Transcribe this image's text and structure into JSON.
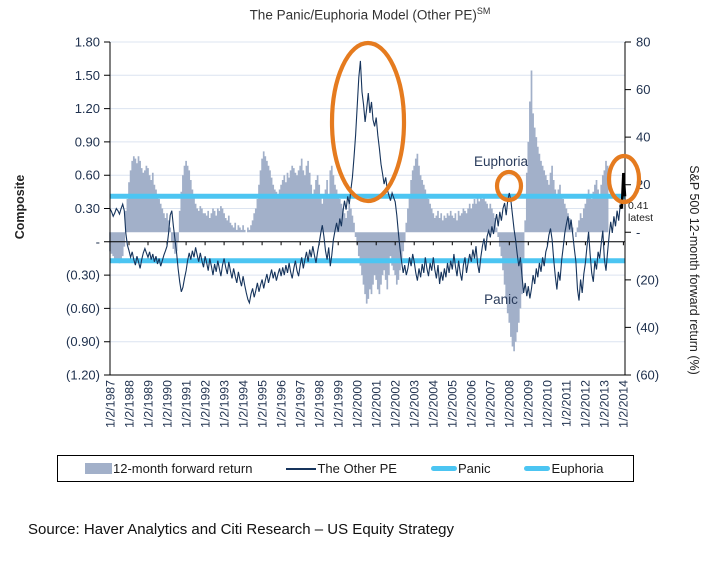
{
  "source": "Source: Haver Analytics and Citi Research – US Equity Strategy",
  "colors": {
    "bar": "#a2b0c9",
    "line": "#16345c",
    "threshold": "#4cc5f2",
    "highlight": "#e57b1f",
    "grid": "#dce4f0",
    "axis_text": "#20324f",
    "latest_text": "#222222",
    "annotation_text": "#2a3c5c",
    "latest_stroke": "#000000"
  },
  "legend": [
    {
      "label": "12-month forward return",
      "swatch": "bar"
    },
    {
      "label": "The Other PE",
      "swatch": "line"
    },
    {
      "label": "Panic",
      "swatch": "threshold"
    },
    {
      "label": "Euphoria",
      "swatch": "threshold"
    }
  ],
  "chart_data": {
    "type": "combo",
    "title": "The Panic/Euphoria Model (Other PE)",
    "title_superscript": "SM",
    "frequency": "monthly",
    "x_start": "1987-01",
    "left_axis": {
      "title": "Composite",
      "max": 1.8,
      "min": -1.2,
      "step": 0.3,
      "tick_labels": [
        "1.80",
        "1.50",
        "1.20",
        "0.90",
        "0.60",
        "0.30",
        "-",
        "(0.30)",
        "(0.60)",
        "(0.90)",
        "(1.20)"
      ],
      "tick_values": [
        1.8,
        1.5,
        1.2,
        0.9,
        0.6,
        0.3,
        0,
        -0.3,
        -0.6,
        -0.9,
        -1.2
      ]
    },
    "right_axis": {
      "title": "S&P 500 12-month forward return (%)",
      "max": 80,
      "min": -60,
      "step": 20,
      "tick_labels": [
        "80",
        "60",
        "40",
        "20",
        "-",
        "(20)",
        "(40)",
        "(60)"
      ],
      "tick_values": [
        80,
        60,
        40,
        20,
        0,
        -20,
        -40,
        -60
      ]
    },
    "x_axis": {
      "ticks_every_months": 12,
      "tick_labels": [
        "1/2/1987",
        "1/2/1988",
        "1/2/1989",
        "1/2/1990",
        "1/2/1991",
        "1/2/1992",
        "1/2/1993",
        "1/2/1994",
        "1/2/1995",
        "1/2/1996",
        "1/2/1997",
        "1/2/1998",
        "1/2/1999",
        "1/2/2000",
        "1/2/2001",
        "1/2/2002",
        "1/2/2003",
        "1/2/2004",
        "1/2/2005",
        "1/2/2006",
        "1/2/2007",
        "1/2/2008",
        "1/2/2009",
        "1/2/2010",
        "1/2/2011",
        "1/2/2012",
        "1/2/2013",
        "1/2/2014"
      ]
    },
    "thresholds": {
      "panic": -0.17,
      "euphoria": 0.41
    },
    "annotations": {
      "euphoria": "Euphoria",
      "panic": "Panic",
      "latest_value": "0.41",
      "latest_caption": "latest"
    },
    "latest_highlight_points": 4,
    "series": [
      {
        "name": "12-month forward return",
        "type": "bar",
        "axis": "right",
        "values": [
          -8,
          -9,
          -10,
          -11,
          -12,
          -11,
          -13,
          -12,
          -10,
          -6,
          9,
          14,
          21,
          26,
          30,
          32,
          31,
          29,
          32,
          30,
          27,
          25,
          26,
          28,
          27,
          24,
          22,
          25,
          20,
          18,
          16,
          14,
          12,
          10,
          8,
          6,
          8,
          5,
          2,
          -4,
          -7,
          -9,
          -8,
          -4,
          9,
          17,
          24,
          28,
          30,
          28,
          26,
          22,
          18,
          15,
          12,
          10,
          9,
          11,
          10,
          8,
          8,
          7,
          9,
          6,
          8,
          10,
          9,
          7,
          10,
          9,
          11,
          10,
          8,
          6,
          5,
          7,
          4,
          3,
          2,
          4,
          1,
          3,
          2,
          1,
          3,
          1,
          0,
          2,
          1,
          3,
          5,
          8,
          10,
          14,
          20,
          26,
          31,
          34,
          32,
          30,
          28,
          26,
          23,
          20,
          18,
          17,
          16,
          18,
          20,
          22,
          24,
          21,
          25,
          23,
          26,
          28,
          27,
          25,
          24,
          26,
          28,
          31,
          26,
          24,
          28,
          30,
          25,
          20,
          15,
          18,
          22,
          24,
          20,
          16,
          12,
          15,
          18,
          22,
          16,
          26,
          28,
          24,
          20,
          18,
          16,
          14,
          12,
          10,
          8,
          6,
          9,
          12,
          10,
          7,
          4,
          -2,
          -5,
          -10,
          -14,
          -18,
          -22,
          -26,
          -30,
          -28,
          -24,
          -26,
          -22,
          -18,
          -20,
          -24,
          -26,
          -22,
          -18,
          -16,
          -20,
          -24,
          -18,
          -10,
          -14,
          -16,
          -18,
          -22,
          -20,
          -16,
          -12,
          -8,
          -4,
          4,
          10,
          16,
          22,
          26,
          28,
          31,
          33,
          28,
          24,
          22,
          20,
          18,
          16,
          14,
          12,
          10,
          8,
          6,
          7,
          9,
          6,
          8,
          5,
          7,
          6,
          8,
          7,
          9,
          7,
          6,
          8,
          5,
          9,
          7,
          8,
          10,
          9,
          8,
          10,
          12,
          10,
          12,
          14,
          12,
          15,
          13,
          16,
          14,
          15,
          13,
          12,
          10,
          12,
          10,
          8,
          6,
          2,
          -2,
          -6,
          -10,
          -16,
          -22,
          -28,
          -34,
          -38,
          -44,
          -48,
          -50,
          -46,
          -42,
          -38,
          -32,
          -26,
          -12,
          5,
          25,
          38,
          55,
          68,
          50,
          44,
          40,
          36,
          33,
          30,
          28,
          26,
          24,
          22,
          20,
          25,
          28,
          22,
          18,
          15,
          18,
          20,
          16,
          14,
          12,
          10,
          8,
          6,
          4,
          2,
          0,
          -2,
          2,
          5,
          8,
          6,
          10,
          12,
          15,
          18,
          16,
          14,
          17,
          20,
          22,
          18,
          16,
          20,
          24,
          26,
          30,
          28
        ]
      },
      {
        "name": "The Other PE",
        "type": "line",
        "axis": "left",
        "values": [
          0.3,
          0.27,
          0.23,
          0.26,
          0.3,
          0.28,
          0.25,
          0.3,
          0.34,
          0.28,
          0.08,
          -0.03,
          -0.08,
          -0.14,
          -0.09,
          -0.16,
          -0.21,
          -0.13,
          -0.18,
          -0.24,
          -0.16,
          -0.1,
          -0.06,
          -0.1,
          -0.14,
          -0.09,
          -0.16,
          -0.11,
          -0.18,
          -0.13,
          -0.2,
          -0.15,
          -0.22,
          -0.17,
          -0.12,
          -0.08,
          -0.04,
          0.08,
          0.24,
          0.28,
          0.14,
          0.02,
          -0.1,
          -0.24,
          -0.36,
          -0.45,
          -0.41,
          -0.33,
          -0.26,
          -0.17,
          -0.1,
          -0.16,
          -0.08,
          -0.14,
          -0.05,
          -0.12,
          -0.18,
          -0.1,
          -0.17,
          -0.23,
          -0.13,
          -0.19,
          -0.26,
          -0.15,
          -0.22,
          -0.3,
          -0.2,
          -0.27,
          -0.17,
          -0.24,
          -0.31,
          -0.21,
          -0.15,
          -0.23,
          -0.29,
          -0.18,
          -0.26,
          -0.33,
          -0.24,
          -0.31,
          -0.37,
          -0.27,
          -0.34,
          -0.4,
          -0.31,
          -0.39,
          -0.46,
          -0.52,
          -0.55,
          -0.47,
          -0.42,
          -0.5,
          -0.44,
          -0.37,
          -0.45,
          -0.39,
          -0.34,
          -0.42,
          -0.35,
          -0.29,
          -0.37,
          -0.31,
          -0.25,
          -0.33,
          -0.27,
          -0.35,
          -0.29,
          -0.24,
          -0.31,
          -0.23,
          -0.3,
          -0.21,
          -0.28,
          -0.19,
          -0.27,
          -0.33,
          -0.24,
          -0.17,
          -0.26,
          -0.31,
          -0.21,
          -0.14,
          -0.24,
          -0.16,
          -0.09,
          -0.18,
          -0.07,
          -0.14,
          -0.04,
          -0.12,
          -0.19,
          -0.09,
          -0.01,
          0.08,
          0.15,
          0.05,
          -0.08,
          -0.16,
          -0.05,
          -0.22,
          -0.12,
          0.02,
          0.1,
          0.17,
          0.09,
          0.21,
          0.14,
          0.27,
          0.37,
          0.29,
          0.41,
          0.34,
          0.47,
          0.58,
          0.76,
          0.96,
          1.22,
          1.48,
          1.63,
          1.35,
          1.24,
          1.08,
          1.2,
          1.34,
          1.16,
          1.26,
          1.1,
          1.04,
          1.12,
          0.96,
          0.84,
          0.7,
          0.61,
          0.52,
          0.58,
          0.47,
          0.42,
          0.37,
          0.44,
          0.4,
          0.36,
          0.24,
          0.08,
          -0.06,
          -0.18,
          -0.28,
          -0.21,
          -0.3,
          -0.24,
          -0.14,
          -0.22,
          -0.11,
          -0.18,
          -0.28,
          -0.35,
          -0.24,
          -0.32,
          -0.2,
          -0.28,
          -0.14,
          -0.24,
          -0.31,
          -0.19,
          -0.26,
          -0.14,
          -0.25,
          -0.33,
          -0.21,
          -0.38,
          -0.27,
          -0.35,
          -0.24,
          -0.32,
          -0.19,
          -0.28,
          -0.17,
          -0.25,
          -0.11,
          -0.22,
          -0.31,
          -0.17,
          -0.28,
          -0.35,
          -0.21,
          -0.14,
          -0.28,
          -0.19,
          -0.11,
          -0.18,
          -0.07,
          -0.15,
          -0.04,
          -0.2,
          -0.28,
          -0.14,
          -0.04,
          0.03,
          -0.08,
          0.05,
          0.1,
          0.04,
          0.14,
          0.07,
          0.17,
          0.25,
          0.14,
          0.27,
          0.19,
          0.3,
          0.35,
          0.24,
          0.37,
          0.44,
          0.37,
          0.24,
          0.11,
          0.01,
          -0.11,
          -0.22,
          -0.14,
          -0.31,
          -0.46,
          -0.37,
          -0.49,
          -0.4,
          -0.51,
          -0.42,
          -0.3,
          -0.38,
          -0.24,
          -0.32,
          -0.19,
          -0.27,
          -0.14,
          -0.22,
          -0.09,
          -0.04,
          0.06,
          0.12,
          0.02,
          -0.16,
          -0.31,
          -0.43,
          -0.27,
          -0.35,
          -0.17,
          -0.05,
          0.08,
          0.16,
          0.23,
          0.11,
          0.2,
          0.07,
          -0.06,
          -0.18,
          -0.43,
          -0.53,
          -0.34,
          -0.46,
          -0.29,
          -0.19,
          -0.04,
          0.09,
          -0.11,
          -0.28,
          -0.36,
          -0.17,
          -0.25,
          -0.09,
          -0.15,
          -0.02,
          0.1,
          -0.16,
          -0.26,
          -0.09,
          0.06,
          0.18,
          0.08,
          0.23,
          0.14,
          0.28,
          0.19,
          0.33,
          0.3,
          0.62,
          0.41
        ]
      }
    ]
  }
}
